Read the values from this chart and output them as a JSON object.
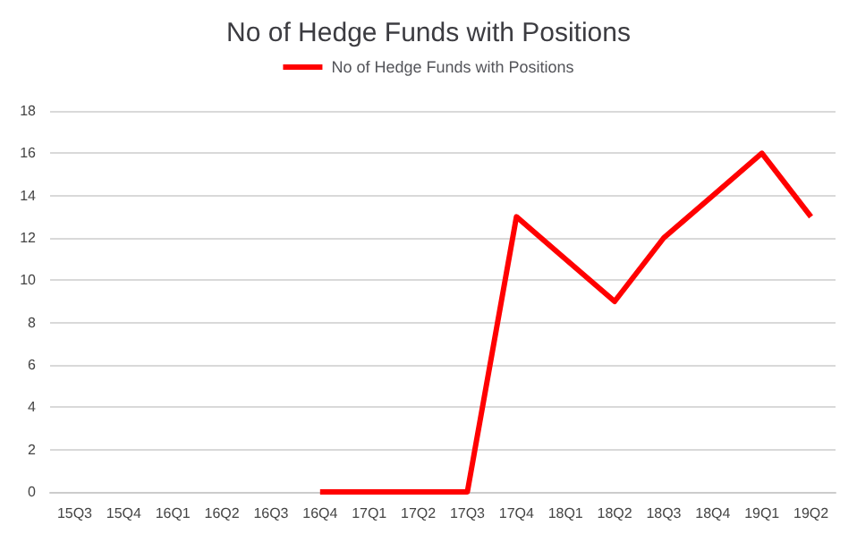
{
  "chart_data": {
    "type": "line",
    "title": "No of Hedge Funds with Positions",
    "categories": [
      "15Q3",
      "15Q4",
      "16Q1",
      "16Q2",
      "16Q3",
      "16Q4",
      "17Q1",
      "17Q2",
      "17Q3",
      "17Q4",
      "18Q1",
      "18Q2",
      "18Q3",
      "18Q4",
      "19Q1",
      "19Q2"
    ],
    "series": [
      {
        "name": "No of Hedge Funds with Positions",
        "color": "#ff0000",
        "values": [
          null,
          null,
          null,
          null,
          null,
          0,
          0,
          0,
          0,
          13,
          11,
          9,
          12,
          14,
          16,
          13
        ]
      }
    ],
    "ylim": [
      0,
      18
    ],
    "yticks": [
      0,
      2,
      4,
      6,
      8,
      10,
      12,
      14,
      16,
      18
    ],
    "grid": "y",
    "legend": "top",
    "marker": "none",
    "line_style": "solid"
  }
}
